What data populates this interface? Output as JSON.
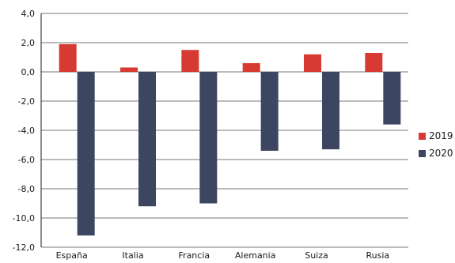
{
  "chart_data": {
    "type": "bar",
    "categories": [
      "España",
      "Italia",
      "Francia",
      "Alemania",
      "Suiza",
      "Rusia"
    ],
    "series": [
      {
        "name": "2019",
        "values": [
          1.9,
          0.3,
          1.5,
          0.6,
          1.2,
          1.3
        ],
        "color": "#d63a32"
      },
      {
        "name": "2020",
        "values": [
          -11.2,
          -9.2,
          -9.0,
          -5.4,
          -5.3,
          -3.6
        ],
        "color": "#3c4660"
      }
    ],
    "ylim": [
      -12,
      4
    ],
    "yticks": [
      "4,0",
      "2,0",
      "0,0",
      "-2,0",
      "-4,0",
      "-6,0",
      "-8,0",
      "-10,0",
      "-12,0"
    ],
    "grid": true,
    "legend_position": "right"
  }
}
